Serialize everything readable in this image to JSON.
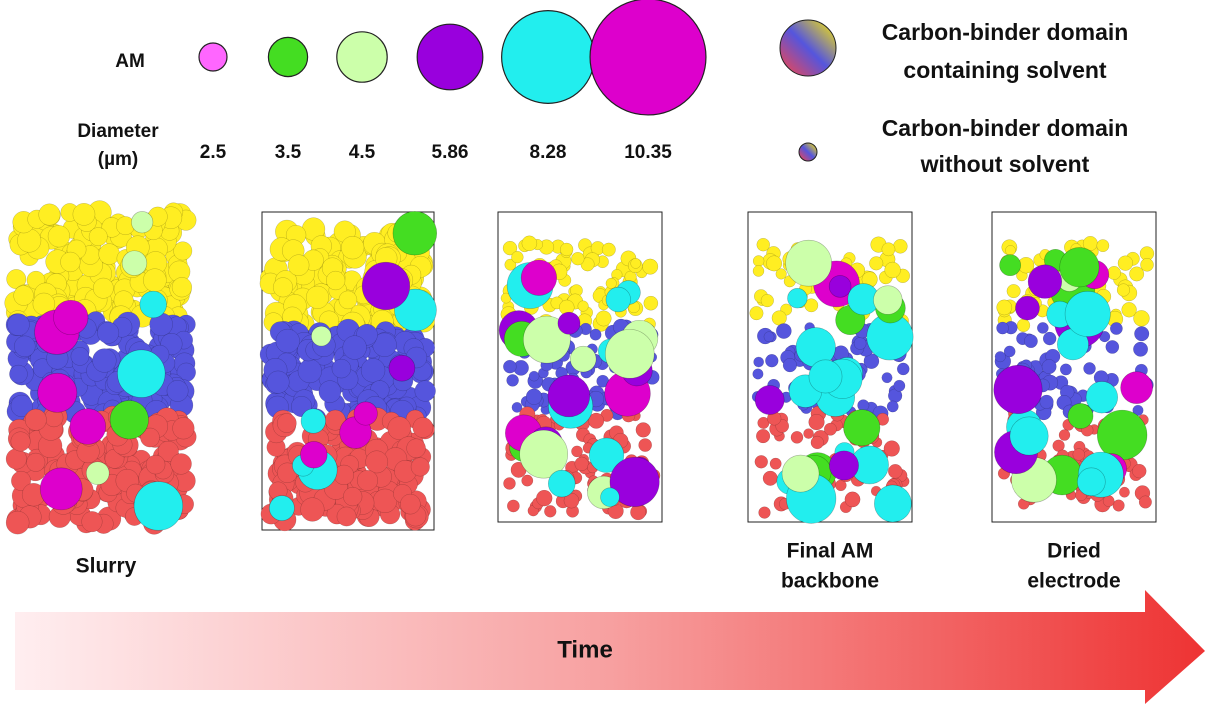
{
  "legend": {
    "am_label": "AM",
    "diameter_label": [
      "Diameter",
      "(µm)"
    ],
    "particles": [
      {
        "diameter": 2.5,
        "color": "#ff66ff"
      },
      {
        "diameter": 3.5,
        "color": "#44dd22"
      },
      {
        "diameter": 4.5,
        "color": "#ccffaa"
      },
      {
        "diameter": 5.86,
        "color": "#9900dd"
      },
      {
        "diameter": 8.28,
        "color": "#22eeee"
      },
      {
        "diameter": 10.35,
        "color": "#dd00cc"
      }
    ],
    "cbd_with_solvent": [
      "Carbon-binder domain",
      "containing solvent"
    ],
    "cbd_without_solvent": [
      "Carbon-binder domain",
      "without solvent"
    ]
  },
  "stages": [
    {
      "label": [
        "Slurry"
      ]
    },
    {
      "label": []
    },
    {
      "label": []
    },
    {
      "label": [
        "Final AM",
        "backbone"
      ]
    },
    {
      "label": [
        "Dried",
        "electrode"
      ]
    }
  ],
  "arrow": {
    "label": "Time"
  }
}
